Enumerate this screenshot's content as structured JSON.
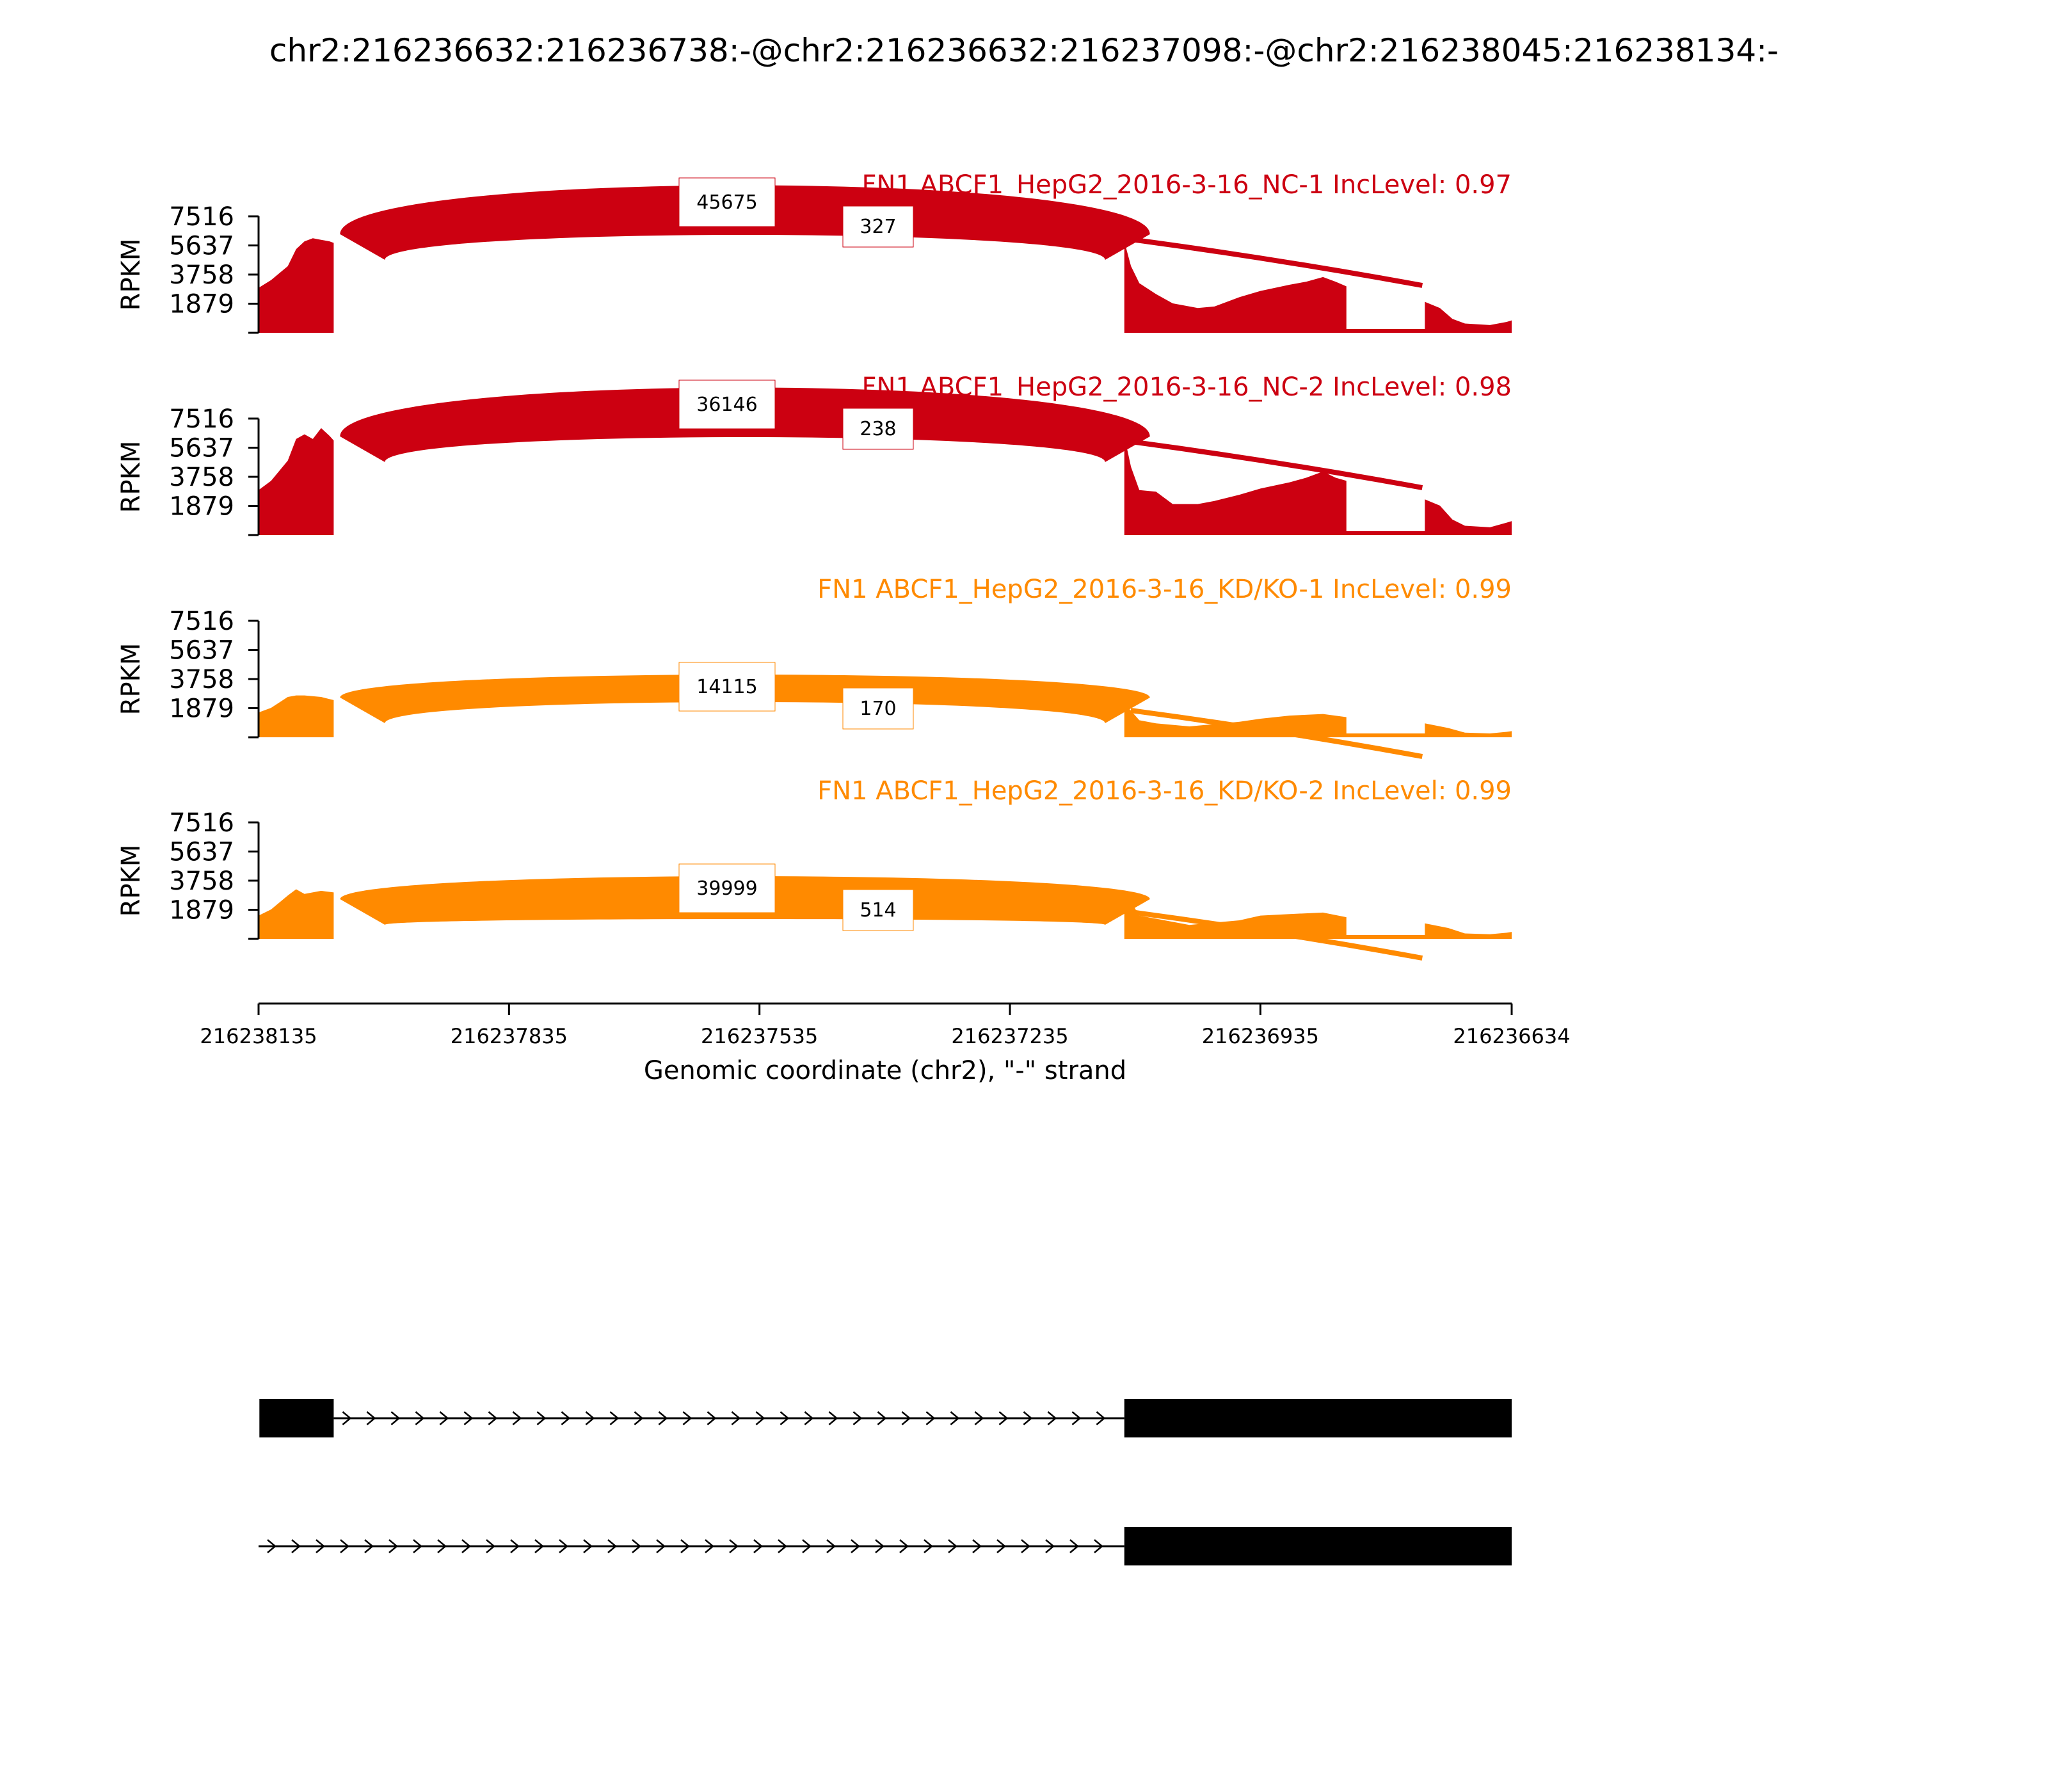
{
  "figure_title": "chr2:216236632:216236738:-@chr2:216236632:216237098:-@chr2:216238045:216238134:-",
  "colors": {
    "nc": "#cc0011",
    "kd": "#ff8a00",
    "axis": "#000000",
    "gene": "#000000"
  },
  "chart_data": {
    "type": "area",
    "title": "chr2:216236632:216236738:-@chr2:216236632:216237098:-@chr2:216238045:216238134:-",
    "xlabel": "Genomic coordinate (chr2), \"-\" strand",
    "ylabel": "RPKM",
    "xlim": [
      216238135,
      216236634
    ],
    "x_ticks": [
      "216238135",
      "216237835",
      "216237535",
      "216237235",
      "216236935",
      "216236634"
    ],
    "ylim": [
      0,
      7516
    ],
    "y_ticks": [
      "7516",
      "5637",
      "3758",
      "1879"
    ],
    "exons": [
      {
        "start": 216238134,
        "end": 216238045
      },
      {
        "start": 216237098,
        "end": 216236632
      }
    ],
    "tracks": [
      {
        "label": "FN1 ABCF1_HepG2_2016-3-16_NC-1 IncLevel: 0.97",
        "color_key": "nc",
        "coverage": [
          [
            216238135,
            2900
          ],
          [
            216238120,
            3400
          ],
          [
            216238100,
            4300
          ],
          [
            216238090,
            5400
          ],
          [
            216238080,
            5900
          ],
          [
            216238070,
            6100
          ],
          [
            216238060,
            6000
          ],
          [
            216238050,
            5900
          ],
          [
            216238045,
            5800
          ],
          [
            216237098,
            5900
          ],
          [
            216237090,
            4300
          ],
          [
            216237080,
            3200
          ],
          [
            216237060,
            2500
          ],
          [
            216237040,
            1900
          ],
          [
            216237010,
            1600
          ],
          [
            216236990,
            1700
          ],
          [
            216236960,
            2300
          ],
          [
            216236935,
            2700
          ],
          [
            216236900,
            3100
          ],
          [
            216236880,
            3300
          ],
          [
            216236860,
            3600
          ],
          [
            216236845,
            3300
          ],
          [
            216236832,
            3000
          ],
          [
            216236738,
            2000
          ],
          [
            216236720,
            1600
          ],
          [
            216236705,
            900
          ],
          [
            216236690,
            600
          ],
          [
            216236660,
            500
          ],
          [
            216236640,
            700
          ],
          [
            216236634,
            800
          ]
        ],
        "junctions": [
          {
            "from": 216238045,
            "to": 216237098,
            "count": "45675"
          },
          {
            "from": 216238045,
            "to": 216236738,
            "count": "327"
          },
          {
            "from": 216237098,
            "to": 216236738,
            "count": ""
          }
        ]
      },
      {
        "label": "FN1 ABCF1_HepG2_2016-3-16_NC-2 IncLevel: 0.98",
        "color_key": "nc",
        "coverage": [
          [
            216238135,
            2900
          ],
          [
            216238120,
            3500
          ],
          [
            216238100,
            4800
          ],
          [
            216238090,
            6200
          ],
          [
            216238080,
            6500
          ],
          [
            216238070,
            6200
          ],
          [
            216238060,
            6900
          ],
          [
            216238050,
            6400
          ],
          [
            216238045,
            6100
          ],
          [
            216237098,
            6400
          ],
          [
            216237090,
            4400
          ],
          [
            216237080,
            2900
          ],
          [
            216237060,
            2800
          ],
          [
            216237040,
            2000
          ],
          [
            216237010,
            2000
          ],
          [
            216236990,
            2200
          ],
          [
            216236960,
            2600
          ],
          [
            216236935,
            3000
          ],
          [
            216236900,
            3400
          ],
          [
            216236880,
            3700
          ],
          [
            216236860,
            4100
          ],
          [
            216236845,
            3700
          ],
          [
            216236832,
            3500
          ],
          [
            216236738,
            2300
          ],
          [
            216236720,
            1900
          ],
          [
            216236705,
            1000
          ],
          [
            216236690,
            600
          ],
          [
            216236660,
            500
          ],
          [
            216236640,
            800
          ],
          [
            216236634,
            900
          ]
        ],
        "junctions": [
          {
            "from": 216238045,
            "to": 216237098,
            "count": "36146"
          },
          {
            "from": 216238045,
            "to": 216236738,
            "count": "238"
          },
          {
            "from": 216237098,
            "to": 216236738,
            "count": ""
          }
        ]
      },
      {
        "label": "FN1 ABCF1_HepG2_2016-3-16_KD/KO-1 IncLevel: 0.99",
        "color_key": "kd",
        "coverage": [
          [
            216238135,
            1600
          ],
          [
            216238120,
            1900
          ],
          [
            216238100,
            2600
          ],
          [
            216238090,
            2700
          ],
          [
            216238080,
            2700
          ],
          [
            216238060,
            2600
          ],
          [
            216238045,
            2400
          ],
          [
            216237098,
            2200
          ],
          [
            216237080,
            1100
          ],
          [
            216237060,
            900
          ],
          [
            216237020,
            700
          ],
          [
            216237000,
            800
          ],
          [
            216236960,
            1000
          ],
          [
            216236935,
            1200
          ],
          [
            216236900,
            1400
          ],
          [
            216236860,
            1500
          ],
          [
            216236832,
            1300
          ],
          [
            216236738,
            900
          ],
          [
            216236710,
            600
          ],
          [
            216236690,
            300
          ],
          [
            216236660,
            250
          ],
          [
            216236640,
            350
          ],
          [
            216236634,
            400
          ]
        ],
        "junctions": [
          {
            "from": 216238045,
            "to": 216237098,
            "count": "14115"
          },
          {
            "from": 216238045,
            "to": 216236738,
            "count": "170"
          },
          {
            "from": 216237098,
            "to": 216236738,
            "count": ""
          }
        ]
      },
      {
        "label": "FN1 ABCF1_HepG2_2016-3-16_KD/KO-2 IncLevel: 0.99",
        "color_key": "kd",
        "coverage": [
          [
            216238135,
            1500
          ],
          [
            216238120,
            1900
          ],
          [
            216238100,
            2800
          ],
          [
            216238090,
            3200
          ],
          [
            216238080,
            2900
          ],
          [
            216238060,
            3100
          ],
          [
            216238045,
            3000
          ],
          [
            216237098,
            3100
          ],
          [
            216237080,
            1500
          ],
          [
            216237060,
            1300
          ],
          [
            216237020,
            900
          ],
          [
            216237000,
            1000
          ],
          [
            216236960,
            1200
          ],
          [
            216236935,
            1500
          ],
          [
            216236900,
            1600
          ],
          [
            216236860,
            1700
          ],
          [
            216236832,
            1400
          ],
          [
            216236738,
            1000
          ],
          [
            216236710,
            700
          ],
          [
            216236690,
            350
          ],
          [
            216236660,
            300
          ],
          [
            216236640,
            400
          ],
          [
            216236634,
            450
          ]
        ],
        "junctions": [
          {
            "from": 216238045,
            "to": 216237098,
            "count": "39999"
          },
          {
            "from": 216238045,
            "to": 216236738,
            "count": "514"
          },
          {
            "from": 216237098,
            "to": 216236738,
            "count": ""
          }
        ]
      }
    ]
  }
}
